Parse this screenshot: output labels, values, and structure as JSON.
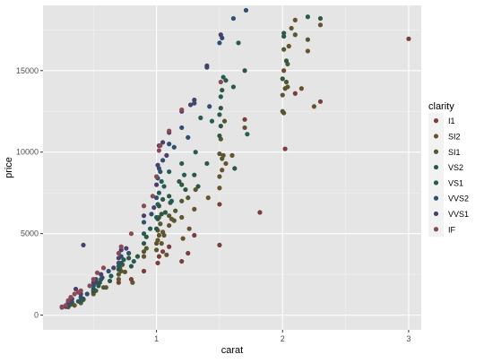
{
  "chart_data": {
    "type": "scatter",
    "xlabel": "carat",
    "ylabel": "price",
    "xlim": [
      0.1,
      3.1
    ],
    "ylim": [
      -900,
      19000
    ],
    "x_ticks": [
      1,
      2,
      3
    ],
    "y_ticks": [
      0,
      5000,
      10000,
      15000
    ],
    "x_tick_labels": [
      "1",
      "2",
      "3"
    ],
    "y_tick_labels": [
      "0",
      "5000",
      "10000",
      "15000"
    ],
    "grid": true,
    "panel_background": "#e5e5e5",
    "legend": {
      "title": "clarity",
      "position": "right"
    },
    "series": [
      {
        "name": "I1",
        "color": "#7a3d3d",
        "points": [
          [
            0.9,
            2700
          ],
          [
            1.01,
            3200
          ],
          [
            1.02,
            3600
          ],
          [
            1.05,
            3900
          ],
          [
            1.1,
            4200
          ],
          [
            1.2,
            3300
          ],
          [
            1.25,
            3800
          ],
          [
            1.5,
            4300
          ],
          [
            1.82,
            6300
          ],
          [
            2.02,
            10200
          ],
          [
            2.3,
            13100
          ],
          [
            3.0,
            16950
          ],
          [
            0.7,
            2000
          ],
          [
            1.3,
            4900
          ],
          [
            1.5,
            6800
          ],
          [
            2.1,
            13600
          ],
          [
            1.7,
            12000
          ],
          [
            0.8,
            2200
          ]
        ]
      },
      {
        "name": "SI2",
        "color": "#64532e",
        "points": [
          [
            0.3,
            550
          ],
          [
            0.35,
            600
          ],
          [
            0.4,
            800
          ],
          [
            0.5,
            1300
          ],
          [
            0.7,
            2200
          ],
          [
            0.72,
            2700
          ],
          [
            0.9,
            3600
          ],
          [
            1.0,
            4000
          ],
          [
            1.01,
            4600
          ],
          [
            1.02,
            4900
          ],
          [
            1.05,
            5100
          ],
          [
            1.1,
            5500
          ],
          [
            1.2,
            6000
          ],
          [
            1.26,
            5300
          ],
          [
            1.3,
            6500
          ],
          [
            1.5,
            8500
          ],
          [
            1.52,
            8900
          ],
          [
            1.55,
            9300
          ],
          [
            1.7,
            11500
          ],
          [
            2.0,
            13500
          ],
          [
            2.01,
            15000
          ],
          [
            2.05,
            16500
          ],
          [
            2.1,
            18100
          ],
          [
            2.2,
            16200
          ],
          [
            2.25,
            12800
          ],
          [
            2.3,
            17800
          ],
          [
            0.81,
            2000
          ],
          [
            1.04,
            4400
          ],
          [
            1.12,
            5900
          ],
          [
            1.5,
            7800
          ],
          [
            1.53,
            9800
          ],
          [
            2.04,
            14000
          ],
          [
            2.07,
            17600
          ],
          [
            0.6,
            1700
          ],
          [
            1.08,
            3700
          ],
          [
            1.41,
            7200
          ],
          [
            1.6,
            9800
          ],
          [
            1.21,
            4700
          ],
          [
            2.01,
            12400
          ],
          [
            2.15,
            13900
          ]
        ]
      },
      {
        "name": "SI1",
        "color": "#52582f",
        "points": [
          [
            0.3,
            500
          ],
          [
            0.32,
            650
          ],
          [
            0.4,
            750
          ],
          [
            0.5,
            1400
          ],
          [
            0.58,
            1700
          ],
          [
            0.7,
            2500
          ],
          [
            0.71,
            2900
          ],
          [
            0.75,
            2650
          ],
          [
            0.9,
            3900
          ],
          [
            1.0,
            4400
          ],
          [
            1.01,
            5200
          ],
          [
            1.03,
            5600
          ],
          [
            1.1,
            6100
          ],
          [
            1.15,
            6400
          ],
          [
            1.2,
            7000
          ],
          [
            1.25,
            7200
          ],
          [
            1.5,
            9900
          ],
          [
            1.51,
            10800
          ],
          [
            1.54,
            11900
          ],
          [
            2.0,
            12500
          ],
          [
            2.02,
            13900
          ],
          [
            2.04,
            15400
          ],
          [
            2.01,
            16300
          ],
          [
            2.1,
            17200
          ],
          [
            2.2,
            16900
          ],
          [
            0.52,
            1500
          ],
          [
            0.73,
            3100
          ],
          [
            0.92,
            4100
          ],
          [
            1.06,
            4900
          ],
          [
            1.14,
            5800
          ],
          [
            1.31,
            7700
          ],
          [
            1.52,
            9600
          ],
          [
            2.03,
            14300
          ],
          [
            0.42,
            950
          ],
          [
            1.02,
            6000
          ]
        ]
      },
      {
        "name": "VS2",
        "color": "#2d5744",
        "points": [
          [
            0.3,
            600
          ],
          [
            0.31,
            720
          ],
          [
            0.38,
            850
          ],
          [
            0.42,
            1000
          ],
          [
            0.5,
            1500
          ],
          [
            0.54,
            1800
          ],
          [
            0.7,
            2800
          ],
          [
            0.72,
            3200
          ],
          [
            0.78,
            3500
          ],
          [
            0.9,
            4400
          ],
          [
            0.92,
            4800
          ],
          [
            1.0,
            5300
          ],
          [
            1.01,
            5900
          ],
          [
            1.02,
            6700
          ],
          [
            1.05,
            7100
          ],
          [
            1.1,
            7300
          ],
          [
            1.2,
            8000
          ],
          [
            1.3,
            8600
          ],
          [
            1.4,
            9300
          ],
          [
            1.5,
            11000
          ],
          [
            1.51,
            12700
          ],
          [
            1.52,
            13800
          ],
          [
            1.55,
            14400
          ],
          [
            1.7,
            15000
          ],
          [
            2.0,
            14500
          ],
          [
            2.01,
            17100
          ],
          [
            2.3,
            18200
          ],
          [
            0.55,
            2000
          ],
          [
            0.8,
            3000
          ],
          [
            1.04,
            6200
          ],
          [
            1.11,
            6900
          ],
          [
            1.23,
            7700
          ],
          [
            1.33,
            7900
          ],
          [
            1.51,
            11600
          ],
          [
            2.03,
            15600
          ],
          [
            1.62,
            9000
          ],
          [
            0.63,
            2100
          ],
          [
            0.85,
            3600
          ],
          [
            1.07,
            6300
          ],
          [
            1.18,
            8200
          ]
        ]
      },
      {
        "name": "VS1",
        "color": "#245c55",
        "points": [
          [
            0.3,
            650
          ],
          [
            0.33,
            800
          ],
          [
            0.4,
            900
          ],
          [
            0.5,
            1600
          ],
          [
            0.52,
            2000
          ],
          [
            0.7,
            3000
          ],
          [
            0.74,
            3400
          ],
          [
            0.9,
            5000
          ],
          [
            0.95,
            5300
          ],
          [
            1.0,
            6000
          ],
          [
            1.01,
            6800
          ],
          [
            1.02,
            7500
          ],
          [
            1.04,
            8200
          ],
          [
            1.1,
            8800
          ],
          [
            1.2,
            9300
          ],
          [
            1.31,
            10000
          ],
          [
            1.5,
            12300
          ],
          [
            1.51,
            13400
          ],
          [
            1.53,
            14600
          ],
          [
            1.61,
            14000
          ],
          [
            1.72,
            11100
          ],
          [
            2.01,
            17300
          ],
          [
            2.2,
            18300
          ],
          [
            0.56,
            2200
          ],
          [
            0.82,
            3300
          ],
          [
            1.06,
            7900
          ],
          [
            1.22,
            8600
          ],
          [
            1.44,
            11900
          ],
          [
            1.65,
            16700
          ],
          [
            0.64,
            2400
          ],
          [
            1.12,
            7000
          ],
          [
            1.35,
            12100
          ]
        ]
      },
      {
        "name": "VVS2",
        "color": "#2f4f70",
        "points": [
          [
            0.25,
            500
          ],
          [
            0.3,
            700
          ],
          [
            0.32,
            900
          ],
          [
            0.4,
            1100
          ],
          [
            0.5,
            1800
          ],
          [
            0.52,
            2100
          ],
          [
            0.7,
            3200
          ],
          [
            0.72,
            3600
          ],
          [
            0.9,
            5700
          ],
          [
            0.96,
            6200
          ],
          [
            1.0,
            7200
          ],
          [
            1.01,
            8400
          ],
          [
            1.02,
            9000
          ],
          [
            1.05,
            9500
          ],
          [
            1.1,
            10500
          ],
          [
            1.2,
            11500
          ],
          [
            1.3,
            13000
          ],
          [
            1.4,
            15200
          ],
          [
            1.5,
            16700
          ],
          [
            1.61,
            18200
          ],
          [
            1.71,
            18700
          ],
          [
            1.52,
            17000
          ],
          [
            0.57,
            2300
          ],
          [
            0.78,
            3800
          ],
          [
            1.03,
            8800
          ],
          [
            1.14,
            10300
          ],
          [
            1.25,
            10900
          ],
          [
            1.42,
            12800
          ],
          [
            0.45,
            1300
          ],
          [
            0.62,
            2700
          ]
        ]
      },
      {
        "name": "VVS1",
        "color": "#4d3d6b",
        "points": [
          [
            0.25,
            480
          ],
          [
            0.28,
            520
          ],
          [
            0.3,
            800
          ],
          [
            0.33,
            1000
          ],
          [
            0.4,
            1300
          ],
          [
            0.42,
            4300
          ],
          [
            0.5,
            2000
          ],
          [
            0.52,
            2200
          ],
          [
            0.7,
            3500
          ],
          [
            0.72,
            4000
          ],
          [
            0.9,
            6100
          ],
          [
            0.98,
            6600
          ],
          [
            1.0,
            8000
          ],
          [
            1.01,
            9200
          ],
          [
            1.02,
            10400
          ],
          [
            1.05,
            10600
          ],
          [
            1.1,
            11200
          ],
          [
            1.2,
            12500
          ],
          [
            1.3,
            13200
          ],
          [
            1.4,
            15300
          ],
          [
            1.51,
            17200
          ],
          [
            0.56,
            2500
          ],
          [
            0.76,
            4100
          ],
          [
            1.08,
            9800
          ],
          [
            1.27,
            12900
          ],
          [
            0.36,
            1600
          ],
          [
            0.66,
            2900
          ]
        ]
      },
      {
        "name": "IF",
        "color": "#8a4a55",
        "points": [
          [
            0.25,
            520
          ],
          [
            0.28,
            600
          ],
          [
            0.3,
            900
          ],
          [
            0.32,
            1100
          ],
          [
            0.35,
            1300
          ],
          [
            0.4,
            1500
          ],
          [
            0.5,
            2200
          ],
          [
            0.53,
            2600
          ],
          [
            0.7,
            3800
          ],
          [
            0.72,
            4200
          ],
          [
            0.9,
            6700
          ],
          [
            0.97,
            7300
          ],
          [
            1.0,
            8500
          ],
          [
            1.02,
            10100
          ],
          [
            1.03,
            10400
          ],
          [
            1.1,
            11300
          ],
          [
            1.2,
            12600
          ],
          [
            1.51,
            14300
          ],
          [
            0.58,
            2900
          ],
          [
            0.8,
            5000
          ],
          [
            0.38,
            1400
          ],
          [
            0.47,
            1800
          ]
        ]
      }
    ]
  }
}
